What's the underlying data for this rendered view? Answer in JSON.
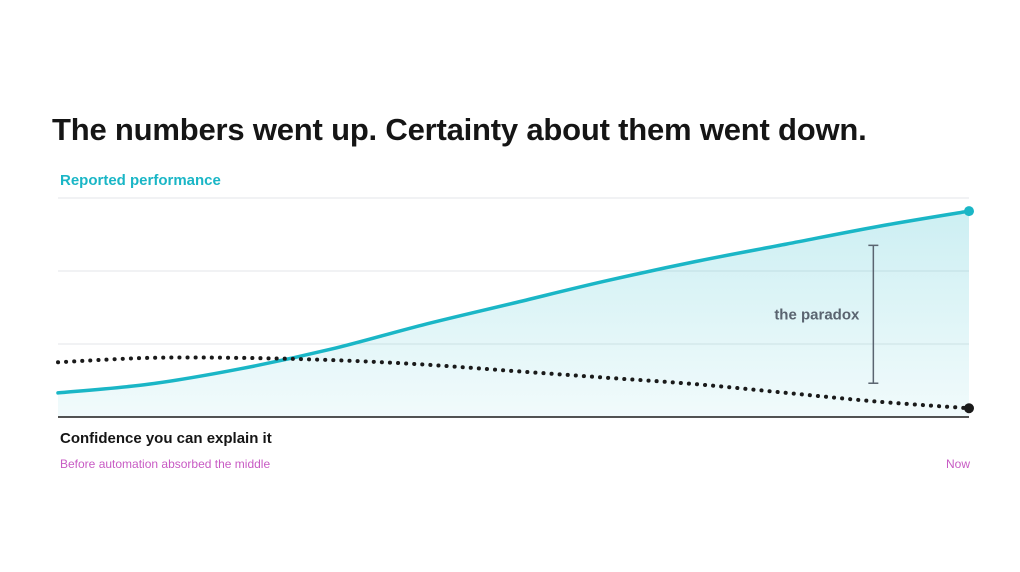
{
  "title": "The numbers went up. Certainty about them went down.",
  "chart_data": {
    "type": "line",
    "title": "The numbers went up. Certainty about them went down.",
    "x_start_label": "Before automation absorbed the middle",
    "x_end_label": "Now",
    "x": [
      0,
      0.1,
      0.2,
      0.3,
      0.4,
      0.5,
      0.6,
      0.7,
      0.8,
      0.9,
      1.0
    ],
    "ylim": [
      0,
      1
    ],
    "grid": true,
    "series": [
      {
        "name": "Reported performance",
        "style": "solid",
        "color": "#1ab6c6",
        "fill": true,
        "values": [
          0.11,
          0.15,
          0.22,
          0.31,
          0.42,
          0.52,
          0.62,
          0.71,
          0.79,
          0.87,
          0.94
        ]
      },
      {
        "name": "Confidence you can explain it",
        "style": "dotted",
        "color": "#1a1a1a",
        "values": [
          0.25,
          0.27,
          0.27,
          0.26,
          0.24,
          0.21,
          0.18,
          0.15,
          0.11,
          0.07,
          0.04
        ]
      }
    ],
    "annotation": {
      "label": "the paradox",
      "x": 0.895
    }
  },
  "colors": {
    "accent": "#1ab6c6",
    "dark": "#1a1a1a",
    "caption": "#c85bc4",
    "grid": "#e3e6e8",
    "annotation": "#5a6470"
  }
}
